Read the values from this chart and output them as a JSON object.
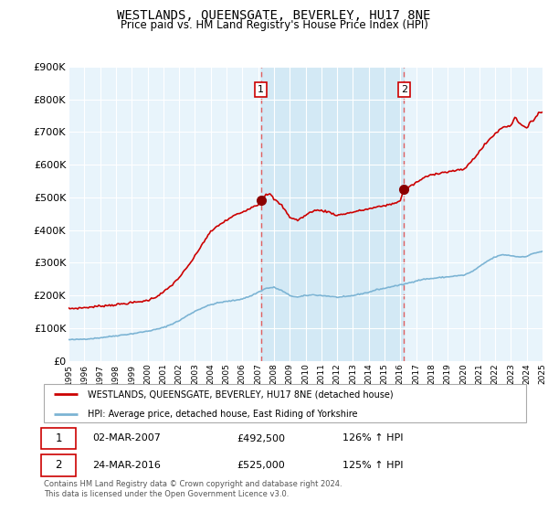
{
  "title": "WESTLANDS, QUEENSGATE, BEVERLEY, HU17 8NE",
  "subtitle": "Price paid vs. HM Land Registry's House Price Index (HPI)",
  "legend_line1": "WESTLANDS, QUEENSGATE, BEVERLEY, HU17 8NE (detached house)",
  "legend_line2": "HPI: Average price, detached house, East Riding of Yorkshire",
  "footnote": "Contains HM Land Registry data © Crown copyright and database right 2024.\nThis data is licensed under the Open Government Licence v3.0.",
  "annotation1_label": "1",
  "annotation1_date": "02-MAR-2007",
  "annotation1_price": "£492,500",
  "annotation1_hpi": "126% ↑ HPI",
  "annotation2_label": "2",
  "annotation2_date": "24-MAR-2016",
  "annotation2_price": "£525,000",
  "annotation2_hpi": "125% ↑ HPI",
  "hpi_color": "#7cb4d4",
  "price_color": "#cc0000",
  "marker_color": "#8b0000",
  "vline_color": "#e06060",
  "annotation_box_color": "#cc0000",
  "shade_color": "#d0e8f5",
  "background_color": "#e8f4fb",
  "plot_bg_color": "#ffffff",
  "grid_color": "#ffffff",
  "ylim": [
    0,
    900000
  ],
  "yticks": [
    0,
    100000,
    200000,
    300000,
    400000,
    500000,
    600000,
    700000,
    800000,
    900000
  ],
  "ytick_labels": [
    "£0",
    "£100K",
    "£200K",
    "£300K",
    "£400K",
    "£500K",
    "£600K",
    "£700K",
    "£800K",
    "£900K"
  ],
  "sale1_x": 2007.17,
  "sale1_price": 492500,
  "sale2_x": 2016.23,
  "sale2_price": 525000
}
